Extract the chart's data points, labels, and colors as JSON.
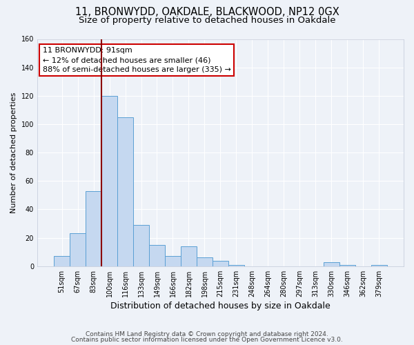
{
  "title": "11, BRONWYDD, OAKDALE, BLACKWOOD, NP12 0GX",
  "subtitle": "Size of property relative to detached houses in Oakdale",
  "xlabel": "Distribution of detached houses by size in Oakdale",
  "ylabel": "Number of detached properties",
  "bar_labels": [
    "51sqm",
    "67sqm",
    "83sqm",
    "100sqm",
    "116sqm",
    "133sqm",
    "149sqm",
    "166sqm",
    "182sqm",
    "198sqm",
    "215sqm",
    "231sqm",
    "248sqm",
    "264sqm",
    "280sqm",
    "297sqm",
    "313sqm",
    "330sqm",
    "346sqm",
    "362sqm",
    "379sqm"
  ],
  "bar_values": [
    7,
    23,
    53,
    120,
    105,
    29,
    15,
    7,
    14,
    6,
    4,
    1,
    0,
    0,
    0,
    0,
    0,
    3,
    1,
    0,
    1
  ],
  "bar_color": "#c5d8f0",
  "bar_edge_color": "#5a9fd4",
  "vline_color": "#8b0000",
  "annotation_text": "11 BRONWYDD: 91sqm\n← 12% of detached houses are smaller (46)\n88% of semi-detached houses are larger (335) →",
  "annotation_box_color": "#ffffff",
  "annotation_box_edge_color": "#cc0000",
  "ylim": [
    0,
    160
  ],
  "yticks": [
    0,
    20,
    40,
    60,
    80,
    100,
    120,
    140,
    160
  ],
  "footer_line1": "Contains HM Land Registry data © Crown copyright and database right 2024.",
  "footer_line2": "Contains public sector information licensed under the Open Government Licence v3.0.",
  "background_color": "#eef2f8",
  "plot_bg_color": "#eef2f8",
  "grid_color": "#ffffff",
  "title_fontsize": 10.5,
  "subtitle_fontsize": 9.5,
  "annotation_fontsize": 8,
  "footer_fontsize": 6.5,
  "ylabel_fontsize": 8,
  "xlabel_fontsize": 9
}
